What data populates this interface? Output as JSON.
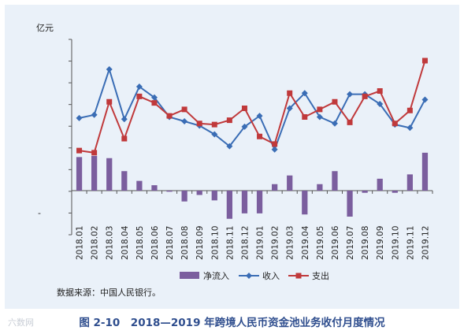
{
  "figure": {
    "caption": "图 2-10　2018—2019 年跨境人民币资金池业务收付月度情况",
    "source": "数据来源：中国人民银行。",
    "watermark": "六数网"
  },
  "chart_data": {
    "type": "bar+line",
    "ylabel": "亿元",
    "yticks_labels_shown": false,
    "y_tick_label_shown": "-",
    "ylim": [
      -2,
      7
    ],
    "categories": [
      "2018.01",
      "2018.02",
      "2018.03",
      "2018.04",
      "2018.05",
      "2018.06",
      "2018.07",
      "2018.08",
      "2018.09",
      "2018.10",
      "2018.11",
      "2018.12",
      "2019.01",
      "2019.02",
      "2019.03",
      "2019.04",
      "2019.05",
      "2019.06",
      "2019.07",
      "2019.08",
      "2019.09",
      "2019.10",
      "2019.11",
      "2019.12"
    ],
    "series": [
      {
        "name": "净流入",
        "type": "bar",
        "color": "#7b5e9e",
        "values": [
          1.55,
          1.6,
          1.5,
          0.9,
          0.45,
          0.25,
          -0.05,
          -0.5,
          -0.2,
          -0.45,
          -1.3,
          -1.05,
          -1.05,
          0.3,
          0.7,
          -1.1,
          0.3,
          0.9,
          -1.2,
          -0.1,
          0.55,
          -0.1,
          0.75,
          1.75
        ]
      },
      {
        "name": "收入",
        "type": "line",
        "color": "#3a6db5",
        "marker": "diamond",
        "values": [
          3.35,
          3.5,
          5.6,
          3.3,
          4.8,
          4.3,
          3.4,
          3.2,
          3.0,
          2.6,
          2.05,
          2.95,
          3.45,
          1.9,
          3.8,
          4.5,
          3.4,
          3.1,
          4.45,
          4.45,
          4.0,
          3.05,
          2.9,
          4.2
        ]
      },
      {
        "name": "支出",
        "type": "line",
        "color": "#c0393b",
        "marker": "square",
        "values": [
          1.85,
          1.75,
          4.1,
          2.4,
          4.35,
          4.05,
          3.45,
          3.75,
          3.1,
          3.05,
          3.25,
          3.8,
          2.5,
          2.15,
          4.5,
          3.4,
          3.75,
          4.1,
          3.15,
          4.35,
          4.6,
          3.1,
          3.7,
          6.0
        ]
      }
    ],
    "legend_position": "bottom-center",
    "grid": false
  }
}
